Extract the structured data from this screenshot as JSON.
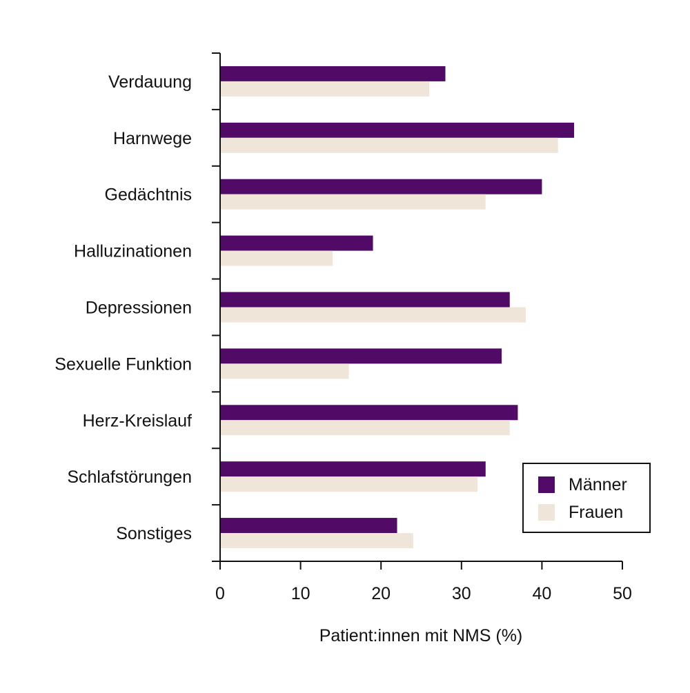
{
  "chart_data": {
    "type": "bar",
    "orientation": "horizontal",
    "categories": [
      "Verdauung",
      "Harnwege",
      "Gedächtnis",
      "Halluzinationen",
      "Depressionen",
      "Sexuelle Funktion",
      "Herz-Kreislauf",
      "Schlafstörungen",
      "Sonstiges"
    ],
    "series": [
      {
        "name": "Männer",
        "color": "#520a67",
        "values": [
          28,
          44,
          40,
          19,
          36,
          35,
          37,
          33,
          22
        ]
      },
      {
        "name": "Frauen",
        "color": "#efe6d9",
        "values": [
          26,
          42,
          33,
          14,
          38,
          16,
          36,
          32,
          24
        ]
      }
    ],
    "xlabel": "Patient:innen mit NMS (%)",
    "ylabel": "",
    "xlim": [
      0,
      50
    ],
    "xticks": [
      "0",
      "10",
      "20",
      "30",
      "40",
      "50"
    ],
    "grid": false,
    "legend_position": "bottom-right"
  }
}
